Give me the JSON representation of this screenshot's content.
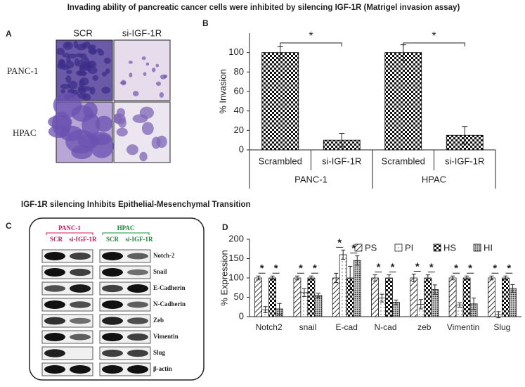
{
  "title": "Invading ability of pancreatic cancer cells were inhibited by silencing IGF-1R (Matrigel invasion assay)",
  "subtitle": "IGF-1R silencing  Inhibits  Epithelial-Mesenchymal Transition",
  "panel_a": {
    "label": "A",
    "columns": [
      "SCR",
      "si-IGF-1R"
    ],
    "rows": [
      "PANC-1",
      "HPAC"
    ]
  },
  "panel_c": {
    "label": "C",
    "groups": [
      {
        "name": "PANC-1",
        "color": "#d4145a",
        "columns": [
          "SCR",
          "si-IGF-1R"
        ]
      },
      {
        "name": "HPAC",
        "color": "#1a8a3a",
        "columns": [
          "SCR",
          "si-IGF-1R"
        ]
      }
    ],
    "proteins": [
      "Notch-2",
      "Snail",
      "E-Cadherin",
      "N-Cadherin",
      "Zeb",
      "Vimentin",
      "Slug",
      "β-actin"
    ]
  },
  "chart_data": [
    {
      "type": "bar",
      "panel": "B",
      "ylabel": "% Invasion",
      "categories": [
        "Scrambled",
        "si-IGF-1R",
        "Scrambled",
        "si-IGF-1R"
      ],
      "groups": [
        "PANC-1",
        "HPAC"
      ],
      "values": [
        100,
        10,
        100,
        15
      ],
      "errors": [
        6,
        7,
        8,
        9
      ],
      "significance": [
        "*",
        "*"
      ],
      "pattern": "checker",
      "color": "#000000",
      "ylim": [
        0,
        120
      ],
      "yticks": [
        0,
        20,
        40,
        60,
        80,
        100
      ]
    },
    {
      "type": "grouped_bar",
      "panel": "D",
      "ylabel": "% Expression",
      "categories": [
        "Notch2",
        "snail",
        "E-cad",
        "N-cad",
        "zeb",
        "Vimentin",
        "Slug"
      ],
      "series": [
        {
          "name": "PS",
          "color": "#000000",
          "pattern": "diagonal",
          "values": [
            100,
            100,
            100,
            100,
            100,
            100,
            100
          ],
          "errors": [
            5,
            5,
            12,
            8,
            10,
            5,
            5
          ]
        },
        {
          "name": "PI",
          "color": "#000000",
          "pattern": "dots",
          "values": [
            18,
            62,
            160,
            48,
            32,
            30,
            5
          ],
          "errors": [
            8,
            10,
            12,
            10,
            12,
            6,
            8
          ]
        },
        {
          "name": "HS",
          "color": "#000000",
          "pattern": "checker",
          "values": [
            100,
            100,
            100,
            100,
            100,
            100,
            100
          ],
          "errors": [
            5,
            5,
            30,
            8,
            8,
            5,
            5
          ]
        },
        {
          "name": "HI",
          "color": "#000000",
          "pattern": "densedots",
          "values": [
            20,
            55,
            145,
            37,
            70,
            33,
            73
          ],
          "errors": [
            14,
            6,
            12,
            6,
            12,
            15,
            10
          ]
        }
      ],
      "significance": [
        "*",
        "*",
        "*",
        "*",
        "*",
        "*",
        "*",
        "*",
        "*",
        "*",
        "*",
        "*",
        "*",
        "*"
      ],
      "legend": "top-right",
      "ylim": [
        0,
        200
      ],
      "yticks": [
        0,
        50,
        100,
        150,
        200
      ]
    }
  ]
}
